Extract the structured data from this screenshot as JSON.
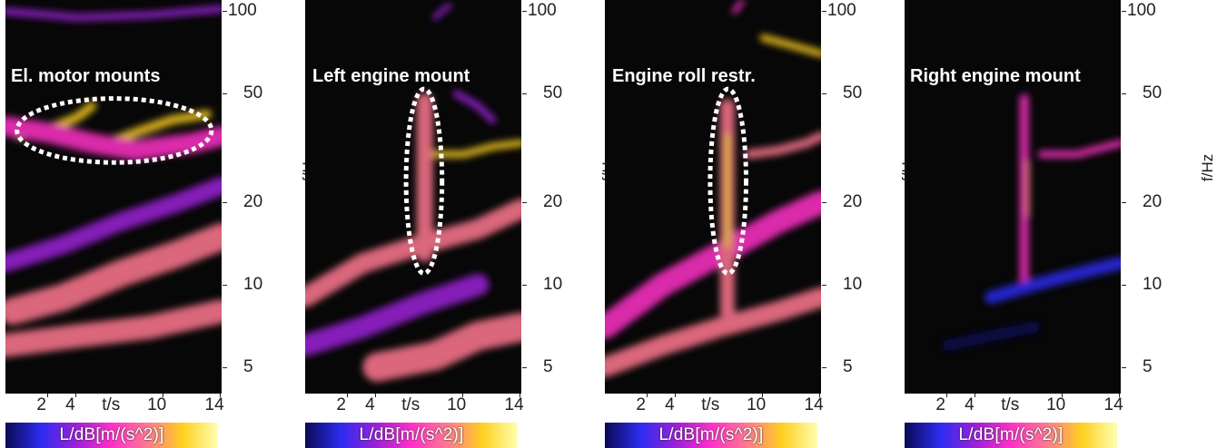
{
  "chart_data": [
    {
      "type": "heatmap",
      "panel_title": "El. motor mounts",
      "xlabel": "t/s",
      "ylabel": "f/Hz",
      "colorbar_label": "L/dB[m/(s^2)]",
      "x_ticks": [
        "2",
        "4",
        "10",
        "14"
      ],
      "y_ticks": [
        "100",
        "50",
        "20",
        "10",
        "5"
      ],
      "y_scale": "log",
      "ylim": [
        4,
        110
      ],
      "xlim": [
        0,
        15
      ],
      "annotation": {
        "shape": "dashed-ellipse",
        "t_center": 7.5,
        "f_center": 36,
        "t_span": [
          0.8,
          14.3
        ],
        "f_span": [
          28,
          48
        ]
      }
    },
    {
      "type": "heatmap",
      "panel_title": "Left engine mount",
      "xlabel": "t/s",
      "ylabel": "f/Hz",
      "colorbar_label": "L/dB[m/(s^2)]",
      "x_ticks": [
        "2",
        "4",
        "10",
        "14"
      ],
      "y_ticks": [
        "100",
        "50",
        "20",
        "10",
        "5"
      ],
      "y_scale": "log",
      "ylim": [
        4,
        110
      ],
      "xlim": [
        0,
        15
      ],
      "annotation": {
        "shape": "dashed-ellipse",
        "t_center": 8.3,
        "f_center": 24,
        "t_span": [
          7.0,
          9.5
        ],
        "f_span": [
          11,
          52
        ]
      }
    },
    {
      "type": "heatmap",
      "panel_title": "Engine roll restr.",
      "xlabel": "t/s",
      "ylabel": "f/Hz",
      "colorbar_label": "L/dB[m/(s^2)]",
      "x_ticks": [
        "2",
        "4",
        "10",
        "14"
      ],
      "y_ticks": [
        "100",
        "50",
        "20",
        "10",
        "5"
      ],
      "y_scale": "log",
      "ylim": [
        4,
        110
      ],
      "xlim": [
        0,
        15
      ],
      "annotation": {
        "shape": "dashed-ellipse",
        "t_center": 8.5,
        "f_center": 24,
        "t_span": [
          7.3,
          9.8
        ],
        "f_span": [
          11,
          52
        ]
      }
    },
    {
      "type": "heatmap",
      "panel_title": "Right engine mount",
      "xlabel": "t/s",
      "ylabel": "f/Hz",
      "colorbar_label": "L/dB[m/(s^2)]",
      "x_ticks": [
        "2",
        "4",
        "10",
        "14"
      ],
      "y_ticks": [
        "100",
        "50",
        "20",
        "10",
        "5"
      ],
      "y_scale": "log",
      "ylim": [
        4,
        110
      ],
      "xlim": [
        0,
        15
      ],
      "annotation": null
    }
  ],
  "colors": {
    "background": "#070707",
    "colormap": [
      "#0a0a55",
      "#2c2cf0",
      "#9b20d8",
      "#ff30c8",
      "#ff7890",
      "#ffd020",
      "#ffffb0"
    ],
    "annotation": "#ffffff"
  }
}
